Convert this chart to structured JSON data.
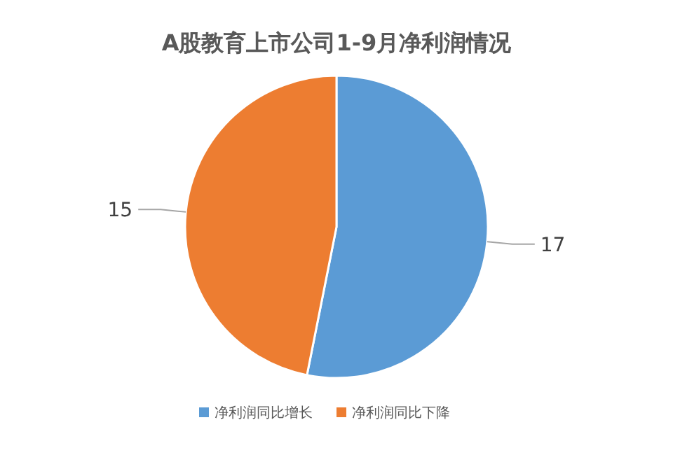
{
  "chart_data": {
    "type": "pie",
    "title": "A股教育上市公司1-9月净利润情况",
    "categories": [
      "净利润同比增长",
      "净利润同比下降"
    ],
    "values": [
      17,
      15
    ],
    "colors": [
      "#5b9bd5",
      "#ed7d31"
    ],
    "data_labels": true,
    "legend": "bottom"
  }
}
